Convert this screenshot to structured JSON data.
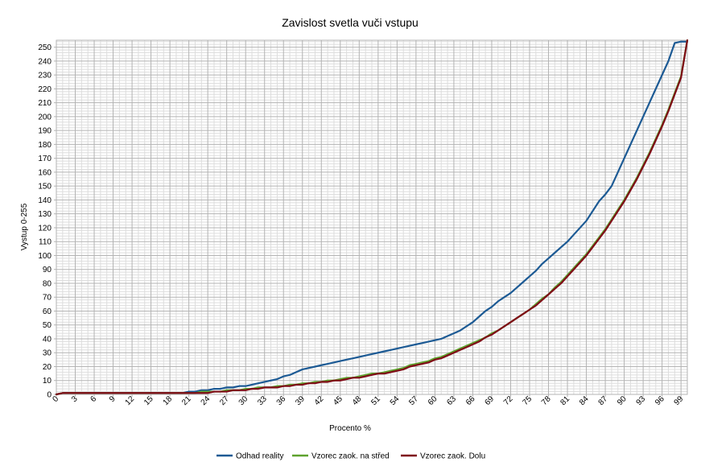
{
  "chart_data": {
    "type": "line",
    "title": "Zavislost svetla vuči vstupu",
    "xlabel": "Procento %",
    "ylabel": "Vystup 0-255",
    "xlim": [
      0,
      100
    ],
    "ylim": [
      0,
      255
    ],
    "x_tick_step": 3,
    "y_tick_step": 10,
    "grid": true,
    "legend_position": "bottom",
    "x": [
      0,
      1,
      2,
      3,
      4,
      5,
      6,
      7,
      8,
      9,
      10,
      11,
      12,
      13,
      14,
      15,
      16,
      17,
      18,
      19,
      20,
      21,
      22,
      23,
      24,
      25,
      26,
      27,
      28,
      29,
      30,
      31,
      32,
      33,
      34,
      35,
      36,
      37,
      38,
      39,
      40,
      41,
      42,
      43,
      44,
      45,
      46,
      47,
      48,
      49,
      50,
      51,
      52,
      53,
      54,
      55,
      56,
      57,
      58,
      59,
      60,
      61,
      62,
      63,
      64,
      65,
      66,
      67,
      68,
      69,
      70,
      71,
      72,
      73,
      74,
      75,
      76,
      77,
      78,
      79,
      80,
      81,
      82,
      83,
      84,
      85,
      86,
      87,
      88,
      89,
      90,
      91,
      92,
      93,
      94,
      95,
      96,
      97,
      98,
      99,
      100
    ],
    "series": [
      {
        "name": "Odhad reality",
        "color": "#1c5a94",
        "values": [
          0,
          1,
          1,
          1,
          1,
          1,
          1,
          1,
          1,
          1,
          1,
          1,
          1,
          1,
          1,
          1,
          1,
          1,
          1,
          1,
          1,
          2,
          2,
          3,
          3,
          4,
          4,
          5,
          5,
          6,
          6,
          7,
          8,
          9,
          10,
          11,
          13,
          14,
          16,
          18,
          19,
          20,
          21,
          22,
          23,
          24,
          25,
          26,
          27,
          28,
          29,
          30,
          31,
          32,
          33,
          34,
          35,
          36,
          37,
          38,
          39,
          40,
          42,
          44,
          46,
          49,
          52,
          56,
          60,
          63,
          67,
          70,
          73,
          77,
          81,
          85,
          89,
          94,
          98,
          102,
          106,
          110,
          115,
          120,
          125,
          132,
          139,
          144,
          150,
          160,
          170,
          180,
          190,
          200,
          210,
          220,
          230,
          240,
          253,
          254,
          254
        ]
      },
      {
        "name": "Vzorec zaok. na střed",
        "color": "#5ea22e",
        "values": [
          0,
          1,
          1,
          1,
          1,
          1,
          1,
          1,
          1,
          1,
          1,
          1,
          1,
          1,
          1,
          1,
          1,
          1,
          1,
          1,
          1,
          1,
          1,
          2,
          2,
          2,
          2,
          3,
          3,
          3,
          4,
          4,
          5,
          5,
          5,
          6,
          6,
          7,
          7,
          8,
          8,
          9,
          9,
          10,
          10,
          11,
          12,
          12,
          13,
          14,
          15,
          15,
          16,
          17,
          18,
          19,
          21,
          22,
          23,
          24,
          26,
          27,
          29,
          31,
          33,
          35,
          37,
          39,
          41,
          44,
          46,
          49,
          52,
          55,
          58,
          61,
          65,
          69,
          72,
          77,
          81,
          86,
          91,
          96,
          101,
          107,
          113,
          119,
          126,
          133,
          140,
          148,
          156,
          165,
          174,
          184,
          194,
          205,
          217,
          229,
          255
        ]
      },
      {
        "name": "Vzorec zaok. Dolu",
        "color": "#7f0b16",
        "values": [
          0,
          1,
          1,
          1,
          1,
          1,
          1,
          1,
          1,
          1,
          1,
          1,
          1,
          1,
          1,
          1,
          1,
          1,
          1,
          1,
          1,
          1,
          1,
          1,
          1,
          2,
          2,
          2,
          3,
          3,
          3,
          4,
          4,
          5,
          5,
          5,
          6,
          6,
          7,
          7,
          8,
          8,
          9,
          9,
          10,
          10,
          11,
          12,
          12,
          13,
          14,
          15,
          15,
          16,
          17,
          18,
          20,
          21,
          22,
          23,
          25,
          26,
          28,
          30,
          32,
          34,
          36,
          38,
          41,
          43,
          46,
          49,
          52,
          55,
          58,
          61,
          64,
          68,
          72,
          76,
          80,
          85,
          90,
          95,
          100,
          106,
          112,
          118,
          125,
          132,
          139,
          147,
          155,
          164,
          173,
          183,
          193,
          204,
          216,
          228,
          255
        ]
      }
    ]
  }
}
